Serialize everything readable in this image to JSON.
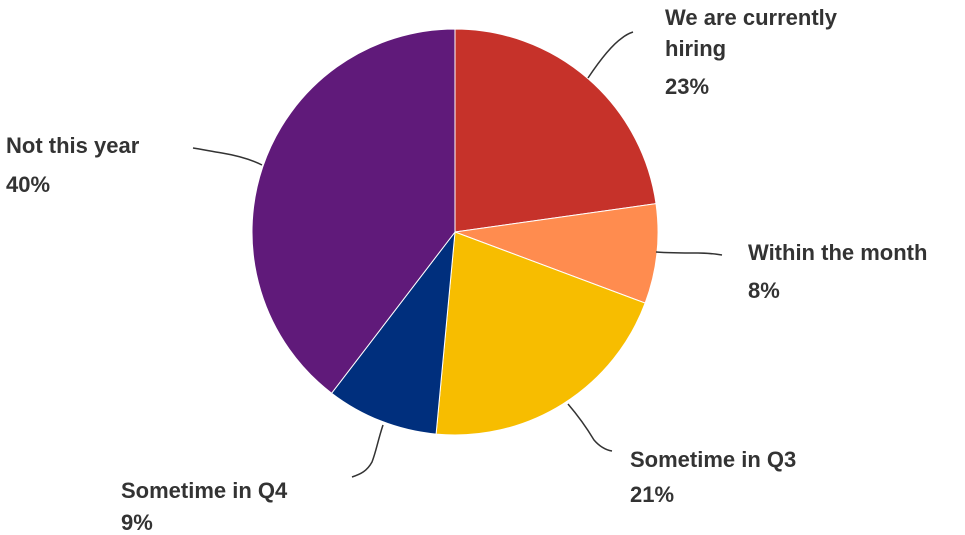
{
  "chart_data": {
    "type": "pie",
    "title": "",
    "slices": [
      {
        "label": "We are currently hiring",
        "value": 23,
        "display": "23%",
        "color": "#C6322A"
      },
      {
        "label": "Within the month",
        "value": 8,
        "display": "8%",
        "color": "#FF8C4F"
      },
      {
        "label": "Sometime in Q3",
        "value": 21,
        "display": "21%",
        "color": "#F7BD00"
      },
      {
        "label": "Sometime in Q4",
        "value": 9,
        "display": "9%",
        "color": "#002F7D"
      },
      {
        "label": "Not this year",
        "value": 40,
        "display": "40%",
        "color": "#601A7A"
      }
    ],
    "legend": "none",
    "data_labels": "outside with leader lines"
  }
}
